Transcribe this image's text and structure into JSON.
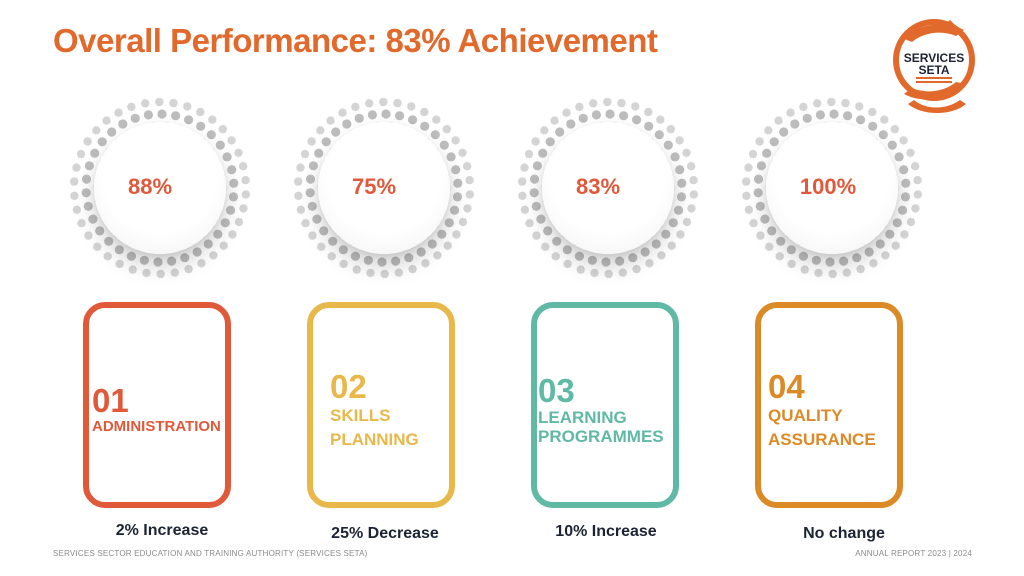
{
  "title": "Overall Performance: 83% Achievement",
  "logo": {
    "line1": "SERVICES",
    "line2": "SETA",
    "accent_color": "#e2692c"
  },
  "metrics": [
    {
      "number": "01",
      "label": "ADMINISTRATION",
      "percent": "88%",
      "change": "2% Increase",
      "color": "#e05a3a"
    },
    {
      "number": "02",
      "label": "SKILLS PLANNING",
      "percent": "75%",
      "change": "25% Decrease",
      "color": "#e8b94a"
    },
    {
      "number": "03",
      "label": "LEARNING PROGRAMMES",
      "percent": "83%",
      "change": "10% Increase",
      "color": "#5fb9a4"
    },
    {
      "number": "04",
      "label": "QUALITY ASSURANCE",
      "percent": "100%",
      "change": "No change",
      "color": "#dc8a26"
    }
  ],
  "footer": {
    "left": "SERVICES SECTOR EDUCATION AND TRAINING AUTHORITY (SERVICES SETA)",
    "right": "ANNUAL REPORT 2023 | 2024"
  }
}
